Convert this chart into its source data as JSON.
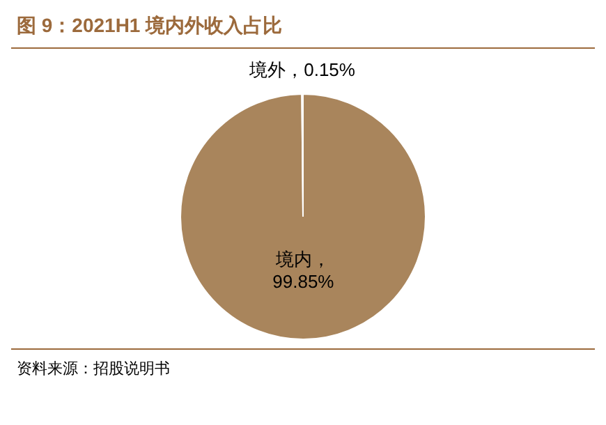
{
  "chart_data": {
    "type": "pie",
    "title": "图 9：2021H1 境内外收入占比",
    "categories": [
      "境内",
      "境外"
    ],
    "values": [
      99.85,
      0.15
    ],
    "colors": [
      "#a9855c",
      "#d9c7a7"
    ],
    "value_labels": [
      "，\n99.85%",
      "，0.15%"
    ],
    "legend": false,
    "annotations": [
      "资料来源：招股说明书"
    ]
  }
}
